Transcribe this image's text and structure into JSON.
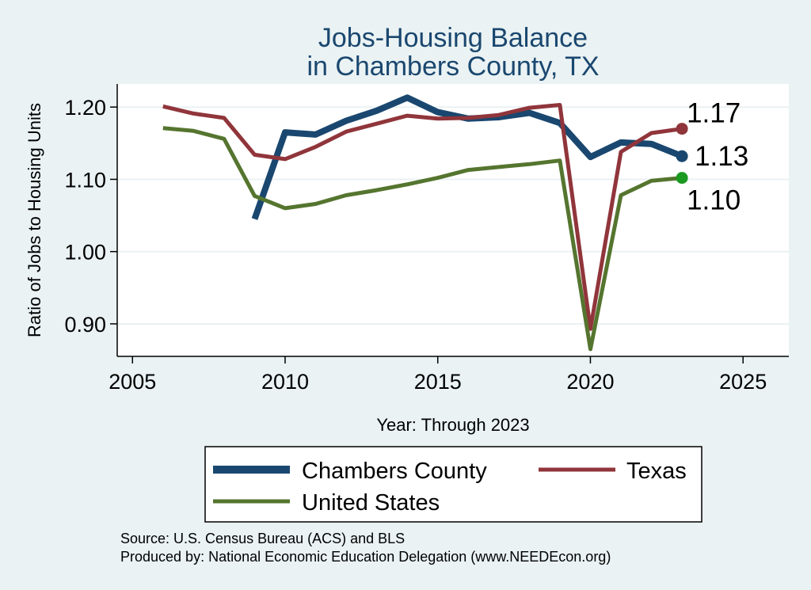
{
  "chart_data": {
    "type": "line",
    "title": [
      "Jobs-Housing Balance",
      "in Chambers County, TX"
    ],
    "xlabel": "Year: Through 2023",
    "ylabel": "Ratio of Jobs to Housing Units",
    "xlim": [
      2004.5,
      2026.5
    ],
    "ylim": [
      0.855,
      1.232
    ],
    "xticks": [
      2005,
      2010,
      2015,
      2020,
      2025
    ],
    "yticks": [
      0.9,
      1.0,
      1.1,
      1.2
    ],
    "ytick_labels": [
      "0.90",
      "1.00",
      "1.10",
      "1.20"
    ],
    "grid": true,
    "series": [
      {
        "name": "Chambers County",
        "color": "#1a476f",
        "line_width": 8,
        "x": [
          2009,
          2010,
          2011,
          2012,
          2013,
          2014,
          2015,
          2016,
          2017,
          2018,
          2019,
          2020,
          2021,
          2022,
          2023
        ],
        "values": [
          1.045,
          1.165,
          1.162,
          1.181,
          1.195,
          1.213,
          1.193,
          1.184,
          1.186,
          1.192,
          1.178,
          1.131,
          1.151,
          1.149,
          1.132
        ],
        "end_label": "1.13",
        "end_color": "#1a476f"
      },
      {
        "name": "Texas",
        "color": "#90353b",
        "line_width": 5,
        "x": [
          2006,
          2007,
          2008,
          2009,
          2010,
          2011,
          2012,
          2013,
          2014,
          2015,
          2016,
          2017,
          2018,
          2019,
          2020,
          2021,
          2022,
          2023
        ],
        "values": [
          1.201,
          1.191,
          1.185,
          1.134,
          1.128,
          1.145,
          1.166,
          1.177,
          1.188,
          1.184,
          1.185,
          1.189,
          1.199,
          1.203,
          0.893,
          1.138,
          1.164,
          1.17
        ],
        "end_label": "1.17",
        "end_color": "#90353b"
      },
      {
        "name": "United States",
        "color": "#55752f",
        "line_width": 5,
        "x": [
          2006,
          2007,
          2008,
          2009,
          2010,
          2011,
          2012,
          2013,
          2014,
          2015,
          2016,
          2017,
          2018,
          2019,
          2020,
          2021,
          2022,
          2023
        ],
        "values": [
          1.171,
          1.167,
          1.156,
          1.077,
          1.06,
          1.066,
          1.078,
          1.085,
          1.093,
          1.102,
          1.113,
          1.117,
          1.121,
          1.126,
          0.865,
          1.078,
          1.098,
          1.102
        ],
        "end_label": "1.10",
        "end_color": "#1a9a20"
      }
    ],
    "legend": {
      "position": "bottom",
      "entries": [
        "Chambers County",
        "Texas",
        "United States"
      ]
    },
    "notes": [
      "Source: U.S. Census Bureau (ACS) and BLS",
      "Produced by: National Economic Education Delegation (www.NEEDEcon.org)"
    ]
  }
}
